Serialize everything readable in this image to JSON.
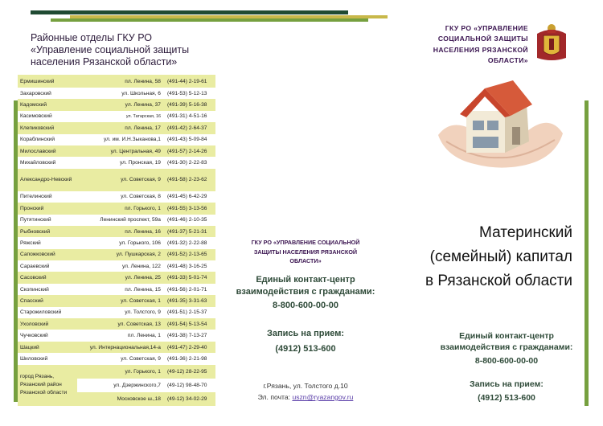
{
  "header": {
    "left_title_lines": [
      "Районные отделы ГКУ РО",
      "«Управление социальной защиты",
      "населения Рязанской области»"
    ],
    "org_lines": [
      "ГКУ РО «УПРАВЛЕНИЕ",
      "СОЦИАЛЬНОЙ ЗАЩИТЫ",
      "НАСЕЛЕНИЯ РЯЗАНСКОЙ",
      "ОБЛАСТИ»"
    ]
  },
  "colors": {
    "dark_green": "#1f4a32",
    "olive": "#c8b84a",
    "green": "#76a03f",
    "row_highlight": "#e9eca2",
    "text_purple": "#3a1450",
    "text_green": "#2e4a38"
  },
  "offices": [
    {
      "name": "Ермишинский",
      "address": "пл. Ленина, 58",
      "phone": "(491-44) 2-19-61"
    },
    {
      "name": "Захаровский",
      "address": "ул. Школьная, 6",
      "phone": "(491-53) 5-12-13"
    },
    {
      "name": "Кадомский",
      "address": "ул. Ленина, 37",
      "phone": "(491-39) 5-16-38"
    },
    {
      "name": "Касимовский",
      "address": "ул. Татарская, 16",
      "phone": "(491-31) 4-51-16",
      "small": true
    },
    {
      "name": "Клепиковский",
      "address": "пл. Ленина, 17",
      "phone": "(491-42) 2-64-37"
    },
    {
      "name": "Кораблинский",
      "address": "ул. им. И.Н.Зыканова,1",
      "phone": "(491-43) 5-09-84"
    },
    {
      "name": "Милославский",
      "address": "ул. Центральная, 49",
      "phone": "(491-57) 2-14-26"
    },
    {
      "name": "Михайловский",
      "address": "ул. Пронская, 19",
      "phone": "(491-30) 2-22-83"
    },
    {
      "name": "Александро-Невский",
      "address": "ул. Советская, 9",
      "phone": "(491-58) 2-23-62",
      "tall": true
    },
    {
      "name": "Пителинский",
      "address": "ул. Советская, 8",
      "phone": "(491-45) 6-42-29"
    },
    {
      "name": "Пронский",
      "address": "пл. Горького, 1",
      "phone": "(491-55) 3-13-56"
    },
    {
      "name": "Путятинский",
      "address": "Ленинский проспект, 59а",
      "phone": "(491-46) 2-10-35"
    },
    {
      "name": "Рыбновский",
      "address": "пл. Ленина, 16",
      "phone": "(491-37) 5-21-31"
    },
    {
      "name": "Ряжский",
      "address": "ул. Горького, 106",
      "phone": "(491-32) 2-22-88"
    },
    {
      "name": "Сапожковский",
      "address": "ул. Пушкарская, 2",
      "phone": "(491-52) 2-13-65"
    },
    {
      "name": "Сараевский",
      "address": "ул. Ленина, 122",
      "phone": "(491-48) 3-16-25"
    },
    {
      "name": "Сасовский",
      "address": "ул. Ленина, 25",
      "phone": "(491-33) 5-01-74"
    },
    {
      "name": "Скопинский",
      "address": "пл. Ленина, 15",
      "phone": "(491-56) 2-01-71"
    },
    {
      "name": "Спасский",
      "address": "ул. Советская, 1",
      "phone": "(491-35) 3-31-63"
    },
    {
      "name": "Старожиловский",
      "address": "ул. Толстого, 9",
      "phone": "(491-51) 2-15-37"
    },
    {
      "name": "Ухоловский",
      "address": "ул. Советская, 13",
      "phone": "(491-54) 5-13-54"
    },
    {
      "name": "Чучковский",
      "address": "пл. Ленина, 1",
      "phone": "(491-38) 7-13-27"
    },
    {
      "name": "Шацкий",
      "address": "ул. Интернациональная,14-а",
      "phone": "(491-47) 2-29-40"
    },
    {
      "name": "Шиловский",
      "address": "ул. Советская, 9",
      "phone": "(491-36) 2-21-98"
    }
  ],
  "ryazan": {
    "name": "город Рязань, Рязанский район Рязанской области",
    "entries": [
      {
        "address": "ул. Горького, 1",
        "phone": "(49-12) 28-22-95"
      },
      {
        "address": "ул. Дзержинского,7",
        "phone": "(49-12) 98-48-70"
      },
      {
        "address": "Московское ш.,18",
        "phone": "(49-12) 34-02-29"
      }
    ]
  },
  "middle": {
    "org_lines": [
      "ГКУ РО  «УПРАВЛЕНИЕ СОЦИАЛЬНОЙ",
      "ЗАЩИТЫ НАСЕЛЕНИЯ РЯЗАНСКОЙ",
      "ОБЛАСТИ»"
    ],
    "contact_lines": [
      "Единый контакт-центр",
      "взаимодействия с гражданами:"
    ],
    "contact_phone": "8-800-600-00-00",
    "record_label": "Запись на прием:",
    "record_phone": "(4912) 513-600",
    "address": "г.Рязань, ул. Толстого д.10",
    "email_label": "Эл. почта: ",
    "email": "uszn@ryazangov.ru"
  },
  "cover": {
    "title_lines": [
      "Материнский",
      "(семейный) капитал",
      "в Рязанской области"
    ],
    "contact_lines": [
      "Единый контакт-центр",
      "взаимодействия с гражданами:"
    ],
    "contact_phone": "8-800-600-00-00",
    "record_label": "Запись на прием:",
    "record_phone": "(4912) 513-600"
  }
}
